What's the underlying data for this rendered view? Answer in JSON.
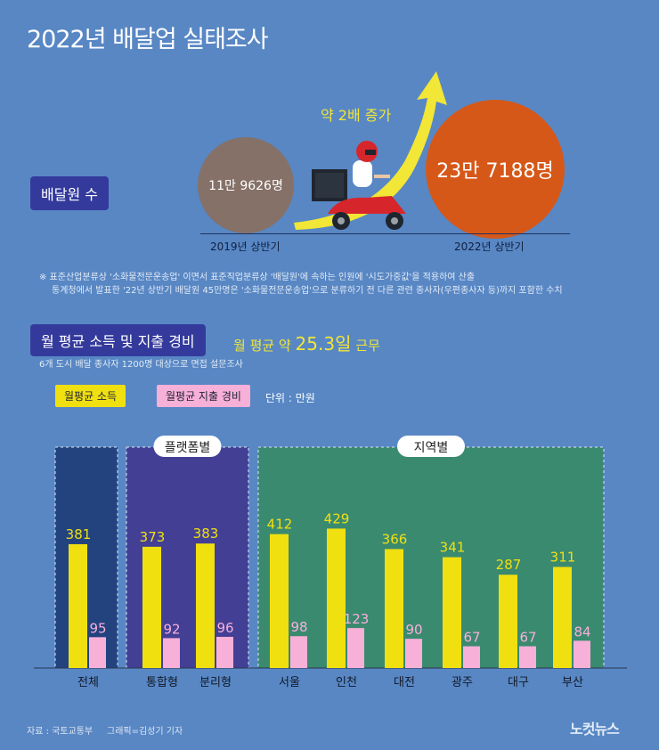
{
  "title": "2022년 배달업 실태조사",
  "workers": {
    "badge": "배달원 수",
    "value_2019": "11만 9626명",
    "value_2022": "23만 7188명",
    "label_2019": "2019년 상반기",
    "label_2022": "2022년 상반기",
    "increase": "약 2배 증가"
  },
  "footnote": {
    "line1": "※ 표준산업분류상 '소화물전문운송업' 이면서 표준직업분류상 '배달원'에 속하는 인원에 '시도가중값'을 적용하여 산출",
    "line2": "통계청에서 발표한 '22년 상반기 배달원 45만명은 '소화물전문운송업'으로 분류하기 전 다른 관련 종사자(우편종사자 등)까지 포함한 수치"
  },
  "income": {
    "badge": "월 평균 소득 및 지출 경비",
    "days_prefix": "월 평균 약",
    "days_value": "25.3일",
    "days_suffix": "근무",
    "survey_note": "6개 도시 배달 종사자 1200명 대상으로 면접 설문조사",
    "unit": "단위 : 만원"
  },
  "colors": {
    "income": "#f0e010",
    "expense": "#f7b0d8",
    "group_total": "#23437f",
    "group_platform": "#433f95",
    "group_region": "#3a8a70"
  },
  "chart_data": {
    "type": "bar",
    "categories": [
      "전체",
      "통합형",
      "분리형",
      "서울",
      "인천",
      "대전",
      "광주",
      "대구",
      "부산"
    ],
    "groups": [
      {
        "name": "",
        "categories": [
          "전체"
        ]
      },
      {
        "name": "플랫폼별",
        "categories": [
          "통합형",
          "분리형"
        ]
      },
      {
        "name": "지역별",
        "categories": [
          "서울",
          "인천",
          "대전",
          "광주",
          "대구",
          "부산"
        ]
      }
    ],
    "series": [
      {
        "name": "월평균 소득",
        "values": [
          381,
          373,
          383,
          412,
          429,
          366,
          341,
          287,
          311
        ]
      },
      {
        "name": "월평균 지출 경비",
        "values": [
          95,
          92,
          96,
          98,
          123,
          90,
          67,
          67,
          84
        ]
      }
    ],
    "ylim": [
      0,
      500
    ],
    "legend": "top-left",
    "grid": false
  },
  "source": "자료 : 국토교통부",
  "credit": "그래픽=김성기 기자",
  "logo": "노컷뉴스"
}
